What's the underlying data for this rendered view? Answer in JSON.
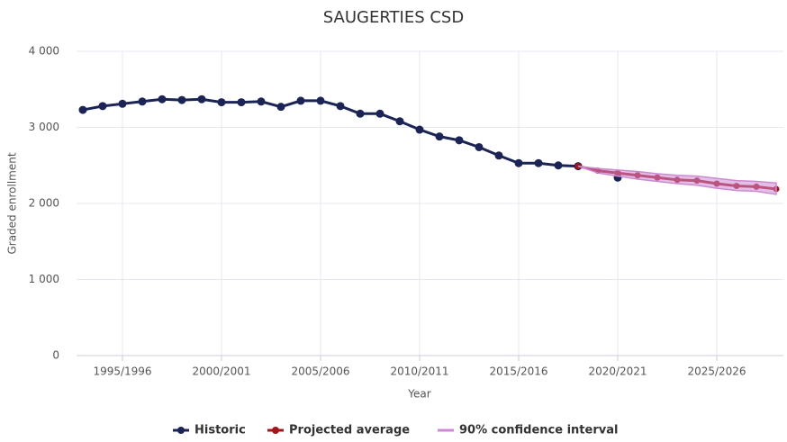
{
  "chart_data": {
    "type": "line",
    "title": "SAUGERTIES CSD",
    "xlabel": "Year",
    "ylabel": "Graded enrollment",
    "categories": [
      null,
      null,
      "1995/1996",
      null,
      null,
      null,
      null,
      "2000/2001",
      null,
      null,
      null,
      null,
      "2005/2006",
      null,
      null,
      null,
      null,
      "2010/2011",
      null,
      null,
      null,
      null,
      "2015/2016",
      null,
      null,
      null,
      null,
      "2020/2021",
      null,
      null,
      null,
      null,
      "2025/2026",
      null,
      null,
      null
    ],
    "series": [
      {
        "name": "Historic",
        "color": "#1b2455",
        "values": [
          3230,
          3280,
          3310,
          3340,
          3370,
          3360,
          3370,
          3330,
          3330,
          3340,
          3270,
          3350,
          3350,
          3280,
          3180,
          3180,
          3080,
          2970,
          2880,
          2830,
          2740,
          2630,
          2530,
          2530,
          2500,
          2490,
          null,
          2340,
          null,
          null,
          null,
          null,
          null,
          null,
          null,
          null
        ]
      },
      {
        "name": "Projected average",
        "color": "#a3151b",
        "values": [
          null,
          null,
          null,
          null,
          null,
          null,
          null,
          null,
          null,
          null,
          null,
          null,
          null,
          null,
          null,
          null,
          null,
          null,
          null,
          null,
          null,
          null,
          null,
          null,
          null,
          2490,
          2430,
          2400,
          2370,
          2340,
          2310,
          2300,
          2260,
          2230,
          2220,
          2190
        ]
      },
      {
        "name": "90% confidence interval",
        "color": "#cc8ad3",
        "high": [
          null,
          null,
          null,
          null,
          null,
          null,
          null,
          null,
          null,
          null,
          null,
          null,
          null,
          null,
          null,
          null,
          null,
          null,
          null,
          null,
          null,
          null,
          null,
          null,
          null,
          2490,
          2460,
          2440,
          2420,
          2390,
          2370,
          2360,
          2330,
          2300,
          2290,
          2270
        ],
        "low": [
          null,
          null,
          null,
          null,
          null,
          null,
          null,
          null,
          null,
          null,
          null,
          null,
          null,
          null,
          null,
          null,
          null,
          null,
          null,
          null,
          null,
          null,
          null,
          null,
          null,
          2490,
          2400,
          2360,
          2320,
          2290,
          2260,
          2240,
          2200,
          2170,
          2160,
          2120
        ]
      }
    ],
    "ylim": [
      0,
      4000
    ],
    "yticks": [
      0,
      {
        "value": 1000,
        "label": "1 000"
      },
      {
        "value": 2000,
        "label": "2 000"
      },
      {
        "value": 3000,
        "label": "3 000"
      },
      {
        "value": 4000,
        "label": "4 000"
      }
    ],
    "grid": true,
    "legend": "bottom"
  }
}
